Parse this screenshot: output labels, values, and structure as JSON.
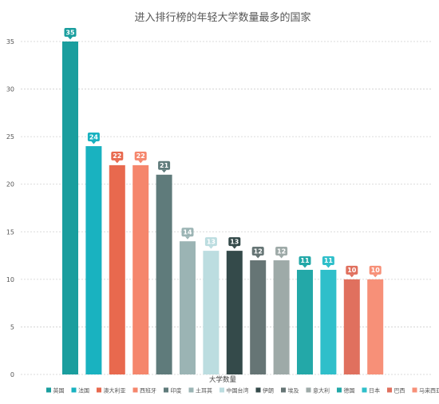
{
  "chart_data": {
    "type": "bar",
    "title": "进入排行榜的年轻大学数量最多的国家",
    "xlabel": "大学数量",
    "ylabel": "",
    "ylim": [
      0,
      35
    ],
    "yticks": [
      0,
      5,
      10,
      15,
      20,
      25,
      30,
      35
    ],
    "grid": true,
    "legend_position": "bottom",
    "categories": [
      "英国",
      "法国",
      "澳大利亚",
      "西班牙",
      "印度",
      "土耳其",
      "中国台湾",
      "伊朗",
      "埃及",
      "意大利",
      "德国",
      "日本",
      "巴西",
      "马来西亚"
    ],
    "values": [
      35,
      24,
      22,
      22,
      21,
      14,
      13,
      13,
      12,
      12,
      11,
      11,
      10,
      10
    ],
    "colors": [
      "#1a9e9e",
      "#19b2c0",
      "#e8694e",
      "#f5866c",
      "#5f7b7b",
      "#9bb4b4",
      "#bcdde0",
      "#344a4a",
      "#667575",
      "#9eaaa8",
      "#23a8a8",
      "#2fbfca",
      "#e0705e",
      "#f79078"
    ]
  }
}
